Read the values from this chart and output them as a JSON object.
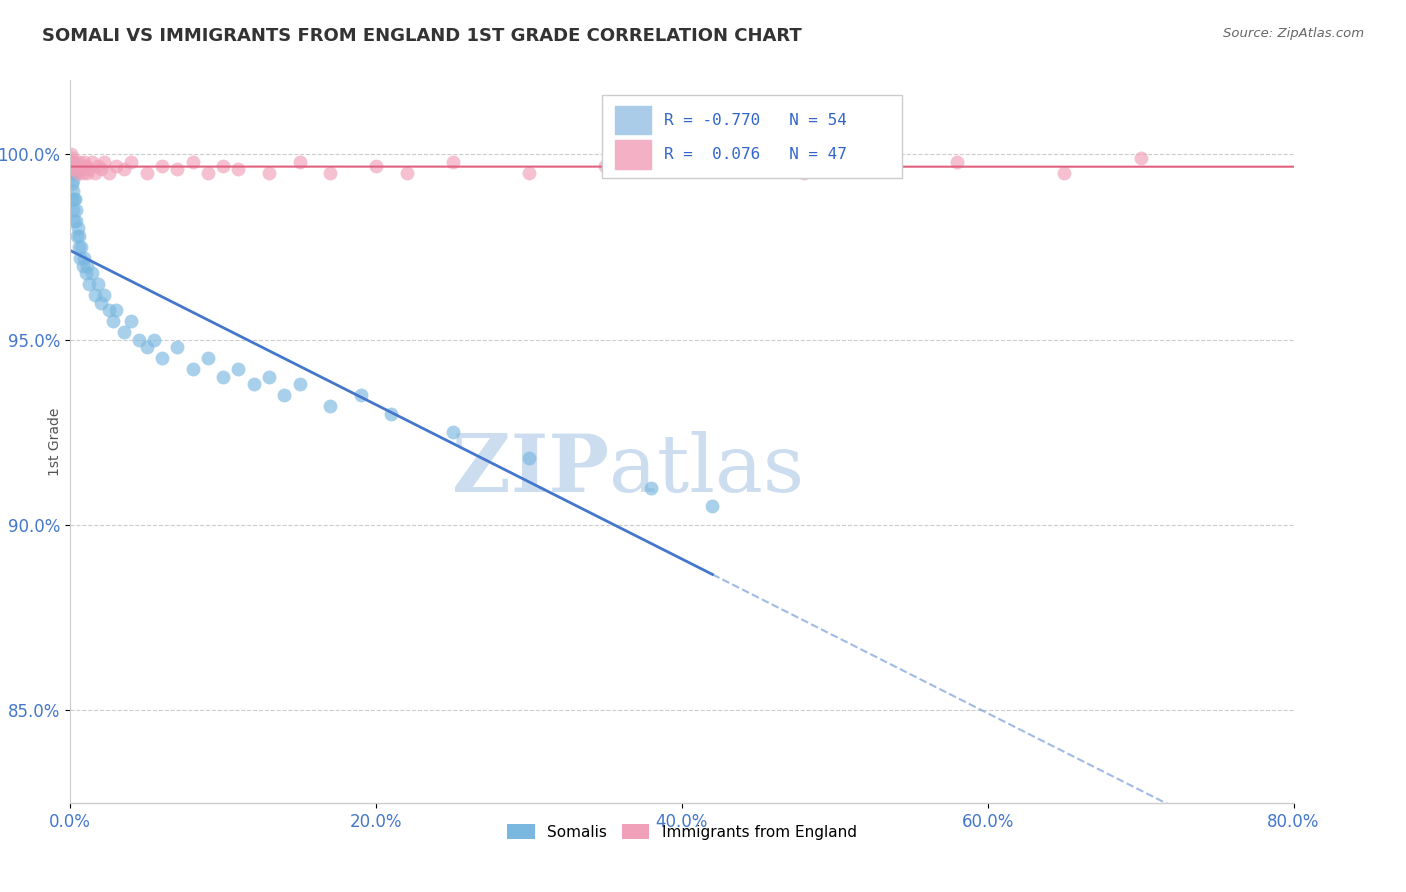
{
  "title": "SOMALI VS IMMIGRANTS FROM ENGLAND 1ST GRADE CORRELATION CHART",
  "source": "Source: ZipAtlas.com",
  "ylabel": "1st Grade",
  "legend_label_blue": "Somalis",
  "legend_label_pink": "Immigrants from England",
  "R_blue": -0.77,
  "N_blue": 54,
  "R_pink": 0.076,
  "N_pink": 47,
  "blue_color": "#7ab8e0",
  "pink_color": "#f0a0b8",
  "blue_line_color": "#4477cc",
  "pink_line_color": "#e06080",
  "blue_line_solid_end": 42.0,
  "xlim": [
    0.0,
    80.0
  ],
  "ylim": [
    82.5,
    102.0
  ],
  "yticks": [
    85.0,
    90.0,
    95.0,
    100.0
  ],
  "xticks": [
    0.0,
    20.0,
    40.0,
    60.0,
    80.0
  ],
  "blue_scatter_x": [
    0.05,
    0.08,
    0.1,
    0.12,
    0.15,
    0.18,
    0.2,
    0.22,
    0.25,
    0.28,
    0.3,
    0.35,
    0.4,
    0.45,
    0.5,
    0.55,
    0.6,
    0.65,
    0.7,
    0.8,
    0.9,
    1.0,
    1.1,
    1.2,
    1.4,
    1.6,
    1.8,
    2.0,
    2.2,
    2.5,
    2.8,
    3.0,
    3.5,
    4.0,
    4.5,
    5.0,
    5.5,
    6.0,
    7.0,
    8.0,
    9.0,
    10.0,
    11.0,
    12.0,
    13.0,
    14.0,
    15.0,
    17.0,
    19.0,
    21.0,
    25.0,
    30.0,
    38.0,
    42.0
  ],
  "blue_scatter_y": [
    99.8,
    99.5,
    99.2,
    98.8,
    99.0,
    98.5,
    99.3,
    98.8,
    98.2,
    99.5,
    98.8,
    98.5,
    98.2,
    97.8,
    98.0,
    97.5,
    97.8,
    97.2,
    97.5,
    97.0,
    97.2,
    96.8,
    97.0,
    96.5,
    96.8,
    96.2,
    96.5,
    96.0,
    96.2,
    95.8,
    95.5,
    95.8,
    95.2,
    95.5,
    95.0,
    94.8,
    95.0,
    94.5,
    94.8,
    94.2,
    94.5,
    94.0,
    94.2,
    93.8,
    94.0,
    93.5,
    93.8,
    93.2,
    93.5,
    93.0,
    92.5,
    91.8,
    91.0,
    90.5
  ],
  "pink_scatter_x": [
    0.05,
    0.08,
    0.1,
    0.15,
    0.2,
    0.25,
    0.3,
    0.4,
    0.5,
    0.6,
    0.7,
    0.8,
    0.9,
    1.0,
    1.1,
    1.2,
    1.4,
    1.6,
    1.8,
    2.0,
    2.2,
    2.5,
    3.0,
    3.5,
    4.0,
    5.0,
    6.0,
    7.0,
    8.0,
    9.0,
    10.0,
    11.0,
    13.0,
    15.0,
    17.0,
    20.0,
    22.0,
    25.0,
    30.0,
    35.0,
    38.0,
    42.0,
    48.0,
    52.0,
    58.0,
    65.0,
    70.0
  ],
  "pink_scatter_y": [
    100.0,
    99.8,
    99.9,
    99.7,
    99.8,
    99.6,
    99.8,
    99.7,
    99.5,
    99.8,
    99.6,
    99.5,
    99.8,
    99.7,
    99.5,
    99.6,
    99.8,
    99.5,
    99.7,
    99.6,
    99.8,
    99.5,
    99.7,
    99.6,
    99.8,
    99.5,
    99.7,
    99.6,
    99.8,
    99.5,
    99.7,
    99.6,
    99.5,
    99.8,
    99.5,
    99.7,
    99.5,
    99.8,
    99.5,
    99.7,
    99.6,
    99.8,
    99.5,
    99.7,
    99.8,
    99.5,
    99.9
  ],
  "watermark_zip": "ZIP",
  "watermark_atlas": "atlas",
  "watermark_color": "#ccddf0"
}
